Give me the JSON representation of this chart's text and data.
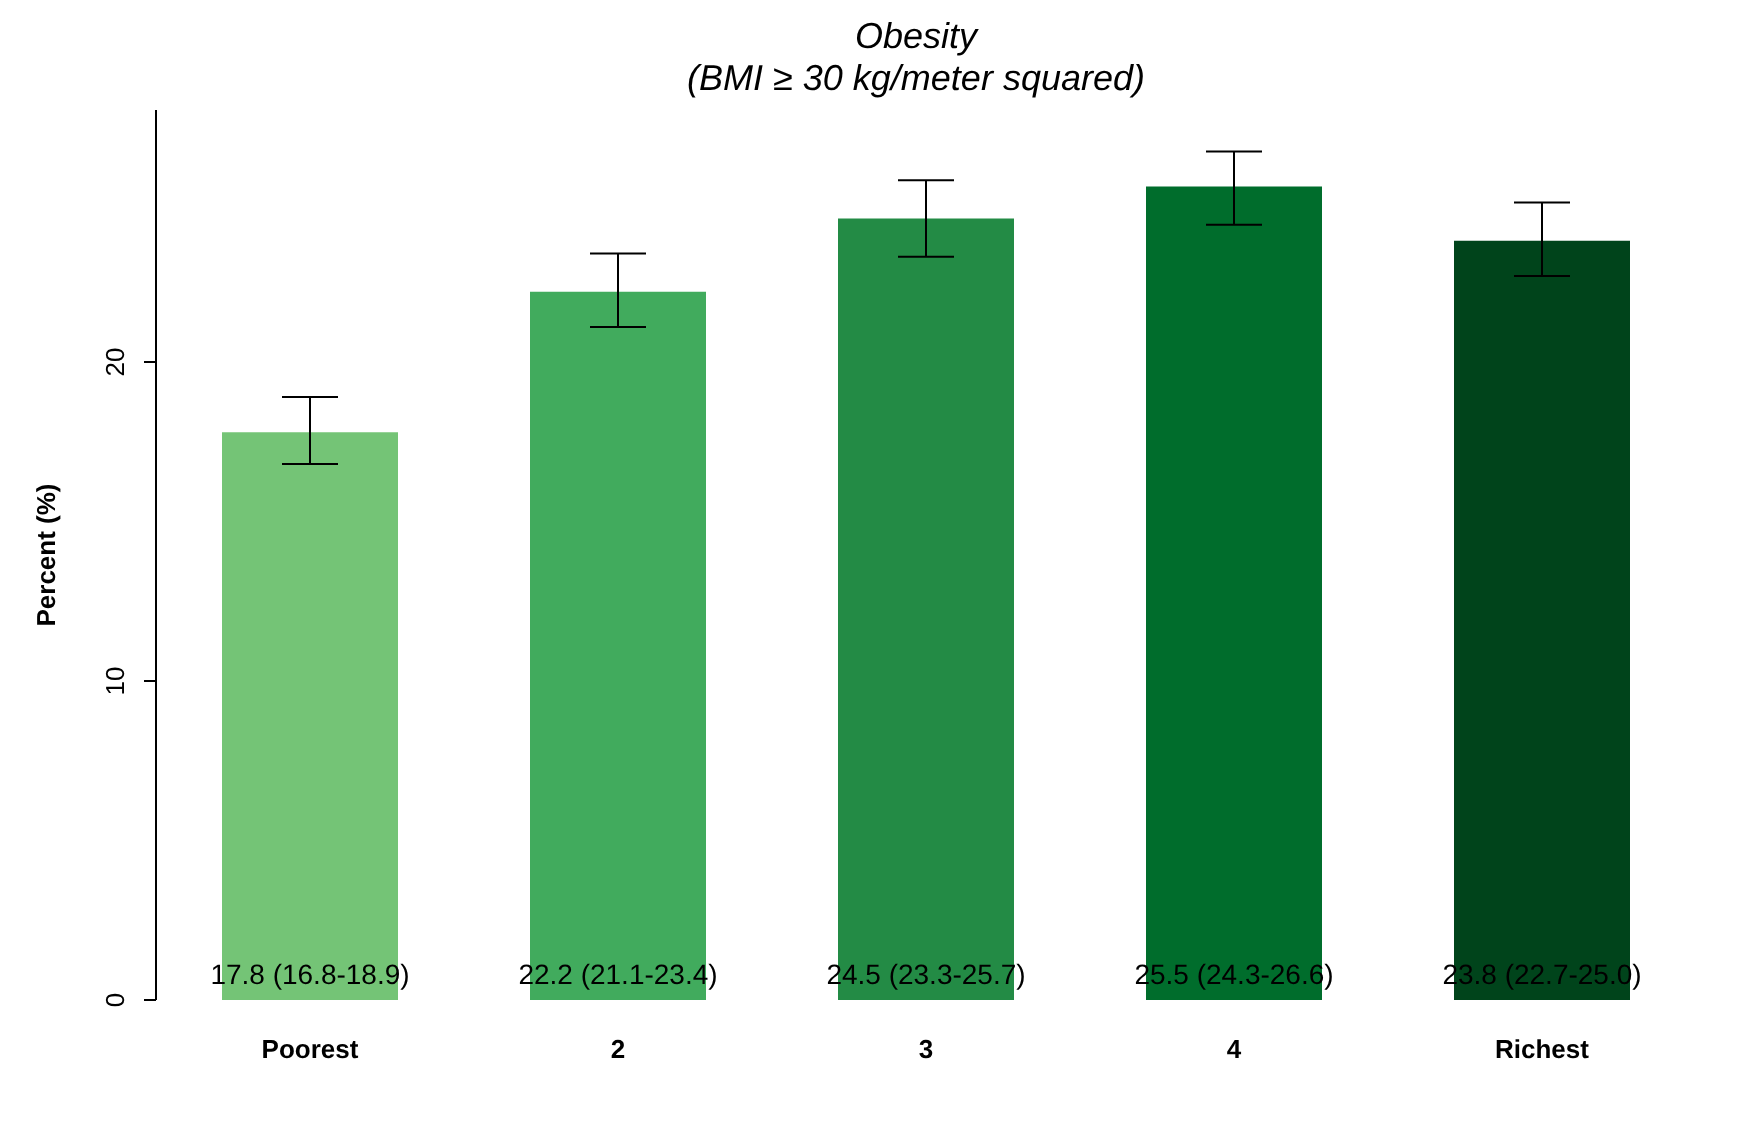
{
  "chart_data": {
    "type": "bar",
    "title": "Obesity",
    "subtitle": "(BMI ≥ 30 kg/meter squared)",
    "ylabel": "Percent (%)",
    "categories": [
      "Poorest",
      "2",
      "3",
      "4",
      "Richest"
    ],
    "values": [
      17.8,
      22.2,
      24.5,
      25.5,
      23.8
    ],
    "colors": [
      "#74c476",
      "#41ab5d",
      "#238b45",
      "#006d2c",
      "#00441b"
    ],
    "errors": [
      [
        16.8,
        18.9
      ],
      [
        21.1,
        23.4
      ],
      [
        23.3,
        25.7
      ],
      [
        24.3,
        26.6
      ],
      [
        22.7,
        25.0
      ]
    ],
    "value_labels": [
      "17.8 (16.8-18.9)",
      "22.2 (21.1-23.4)",
      "24.5 (23.3-25.7)",
      "25.5 (24.3-26.6)",
      "23.8 (22.7-25.0)"
    ],
    "ylim": [
      0,
      27.9
    ],
    "yticks": [
      0,
      10,
      20
    ],
    "grid": false,
    "legend": false
  }
}
